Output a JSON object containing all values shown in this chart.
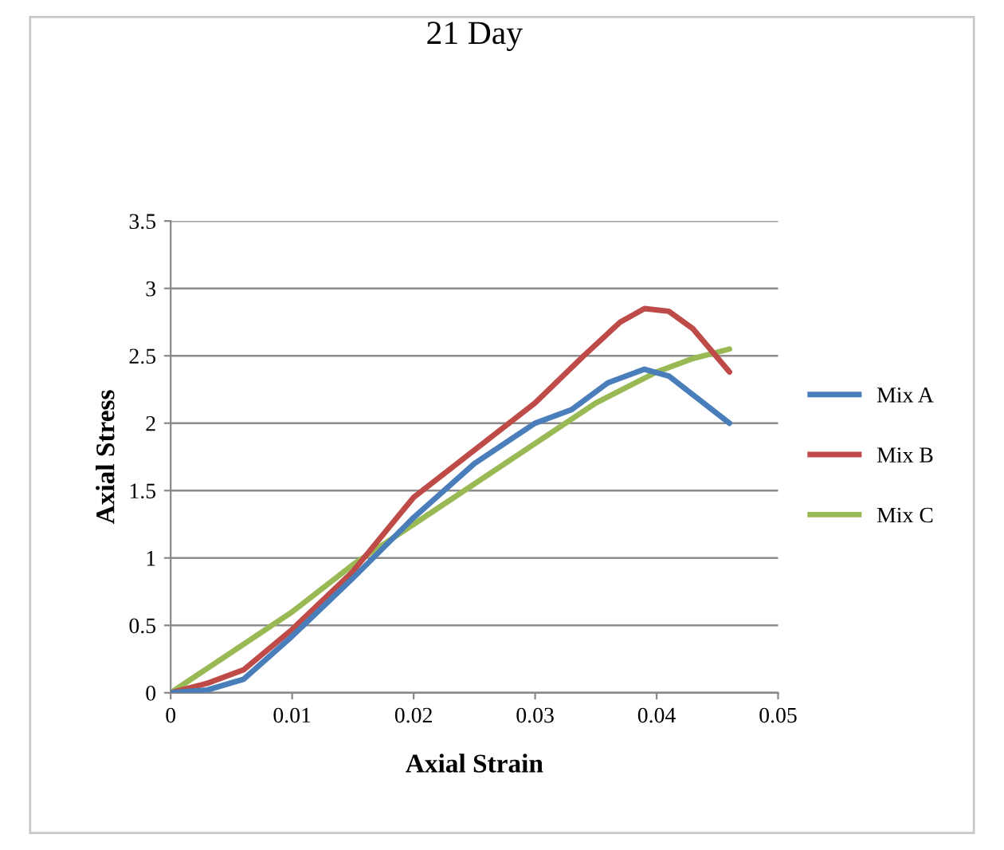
{
  "chart_data": {
    "type": "line",
    "title": "21 Day",
    "xlabel": "Axial Strain",
    "ylabel": "Axial Stress",
    "xlim": [
      0,
      0.05
    ],
    "xticks": [
      0,
      0.01,
      0.02,
      0.03,
      0.04,
      0.05
    ],
    "ylim": [
      0,
      3.5
    ],
    "yticks": [
      0,
      0.5,
      1,
      1.5,
      2,
      2.5,
      3,
      3.5
    ],
    "grid": "y",
    "legend": "right",
    "marker": "none",
    "line_style": "solid",
    "series": [
      {
        "name": "Mix A",
        "color": "#4a7ebb",
        "x": [
          0,
          0.003,
          0.006,
          0.01,
          0.015,
          0.02,
          0.025,
          0.03,
          0.033,
          0.036,
          0.039,
          0.041,
          0.046
        ],
        "values": [
          0,
          0.02,
          0.1,
          0.42,
          0.85,
          1.3,
          1.7,
          2.0,
          2.1,
          2.3,
          2.4,
          2.35,
          2.0
        ]
      },
      {
        "name": "Mix B",
        "color": "#be4b48",
        "x": [
          0,
          0.003,
          0.006,
          0.01,
          0.015,
          0.02,
          0.025,
          0.03,
          0.034,
          0.037,
          0.039,
          0.041,
          0.043,
          0.046
        ],
        "values": [
          0,
          0.07,
          0.17,
          0.47,
          0.9,
          1.45,
          1.8,
          2.15,
          2.5,
          2.75,
          2.85,
          2.83,
          2.7,
          2.38
        ]
      },
      {
        "name": "Mix C",
        "color": "#98b954",
        "x": [
          0,
          0.005,
          0.01,
          0.015,
          0.02,
          0.025,
          0.03,
          0.035,
          0.04,
          0.043,
          0.046
        ],
        "values": [
          0,
          0.3,
          0.6,
          0.95,
          1.25,
          1.55,
          1.85,
          2.15,
          2.38,
          2.48,
          2.55
        ]
      }
    ]
  }
}
